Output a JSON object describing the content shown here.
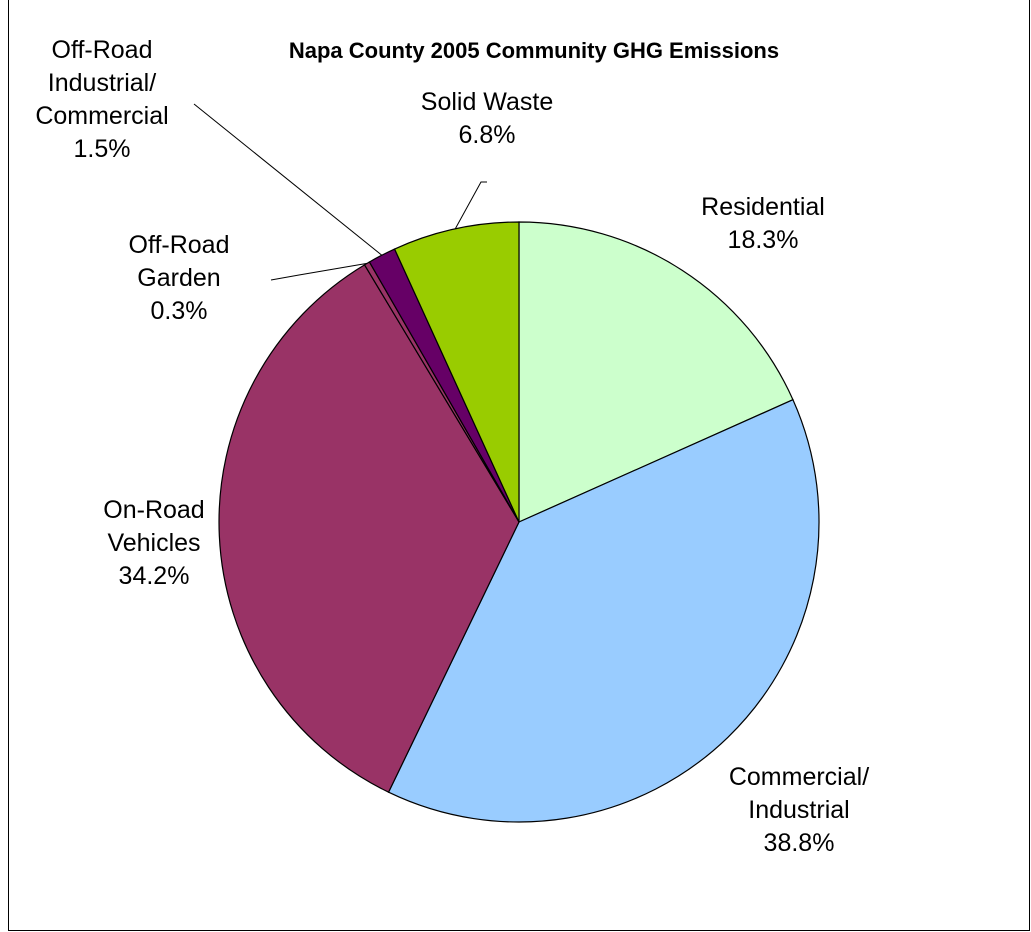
{
  "chart_data": {
    "type": "pie",
    "title": "Napa County 2005 Community GHG Emissions",
    "slices": [
      {
        "label_lines": [
          "Residential"
        ],
        "value": 18.3,
        "value_label": "18.3%",
        "color": "#ccffcc"
      },
      {
        "label_lines": [
          "Commercial/",
          "Industrial"
        ],
        "value": 38.8,
        "value_label": "38.8%",
        "color": "#99ccff"
      },
      {
        "label_lines": [
          "On-Road",
          "Vehicles"
        ],
        "value": 34.2,
        "value_label": "34.2%",
        "color": "#993366"
      },
      {
        "label_lines": [
          "Off-Road",
          "Garden"
        ],
        "value": 0.3,
        "value_label": "0.3%",
        "color": "#993366"
      },
      {
        "label_lines": [
          "Off-Road",
          "Industrial/",
          "Commercial"
        ],
        "value": 1.5,
        "value_label": "1.5%",
        "color": "#660066"
      },
      {
        "label_lines": [
          "Solid Waste"
        ],
        "value": 6.8,
        "value_label": "6.8%",
        "color": "#99cc00"
      }
    ],
    "start_angle": "12 o'clock",
    "direction": "clockwise",
    "legend": "none"
  }
}
